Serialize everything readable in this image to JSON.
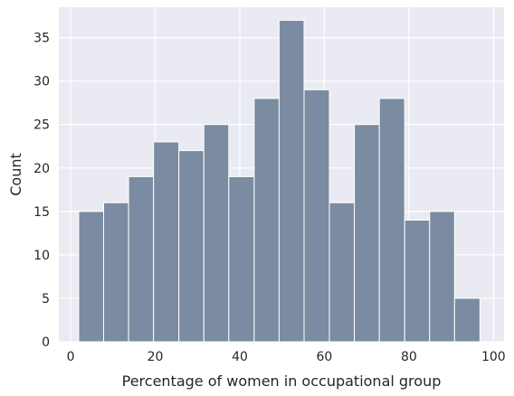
{
  "chart_data": {
    "type": "bar",
    "title": "",
    "xlabel": "Percentage of women in occupational group",
    "ylabel": "Count",
    "xlim": [
      -2.8,
      102.5
    ],
    "ylim": [
      0,
      38.5
    ],
    "x_ticks": [
      0,
      20,
      40,
      60,
      80,
      100
    ],
    "y_ticks": [
      0,
      5,
      10,
      15,
      20,
      25,
      30,
      35
    ],
    "grid": true,
    "background_color": "#eaeaf2",
    "grid_color": "#ffffff",
    "bar_color": "#7b8ba1",
    "bar_edge_color": "#ffffff",
    "bins": [
      {
        "x0": 1.9,
        "x1": 7.8,
        "count": 15
      },
      {
        "x0": 7.8,
        "x1": 13.7,
        "count": 16
      },
      {
        "x0": 13.7,
        "x1": 19.6,
        "count": 19
      },
      {
        "x0": 19.6,
        "x1": 25.6,
        "count": 23
      },
      {
        "x0": 25.6,
        "x1": 31.5,
        "count": 22
      },
      {
        "x0": 31.5,
        "x1": 37.4,
        "count": 25
      },
      {
        "x0": 37.4,
        "x1": 43.4,
        "count": 19
      },
      {
        "x0": 43.4,
        "x1": 49.3,
        "count": 28
      },
      {
        "x0": 49.3,
        "x1": 55.2,
        "count": 37
      },
      {
        "x0": 55.2,
        "x1": 61.2,
        "count": 29
      },
      {
        "x0": 61.2,
        "x1": 67.1,
        "count": 16
      },
      {
        "x0": 67.1,
        "x1": 73.0,
        "count": 25
      },
      {
        "x0": 73.0,
        "x1": 79.0,
        "count": 28
      },
      {
        "x0": 79.0,
        "x1": 84.9,
        "count": 14
      },
      {
        "x0": 84.9,
        "x1": 90.8,
        "count": 15
      },
      {
        "x0": 90.8,
        "x1": 96.8,
        "count": 5
      }
    ]
  }
}
